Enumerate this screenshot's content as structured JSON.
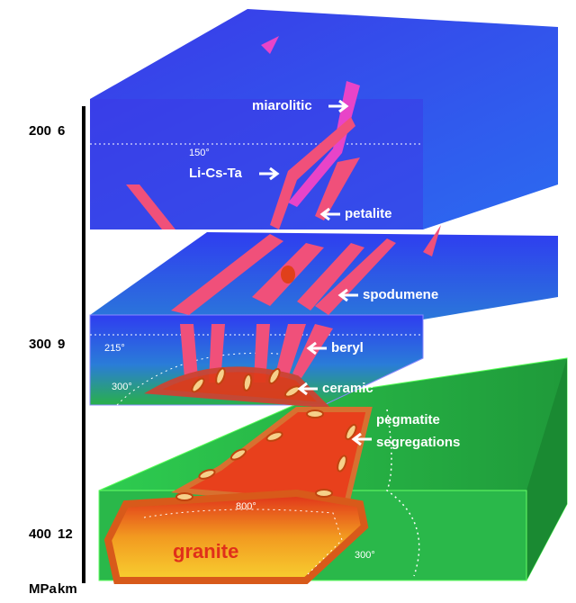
{
  "depth_scale": {
    "rows": [
      {
        "pressure": "200",
        "depth": "6"
      },
      {
        "pressure": "300",
        "depth": "9"
      },
      {
        "pressure": "400",
        "depth": "12"
      }
    ],
    "units": {
      "pressure": "MPa",
      "depth": "km"
    }
  },
  "labels": {
    "miarolitic": "miarolitic",
    "li_cs_ta": "Li-Cs-Ta",
    "petalite": "petalite",
    "spodumene": "spodumene",
    "beryl": "beryl",
    "ceramic": "ceramic",
    "pegmatite_segregations": [
      "pegmatite",
      "segregations"
    ],
    "granite": "granite"
  },
  "temperatures": {
    "t150": "150°",
    "t215": "215°",
    "t300_left": "300°",
    "t800": "800°",
    "t300_right": "300°"
  }
}
